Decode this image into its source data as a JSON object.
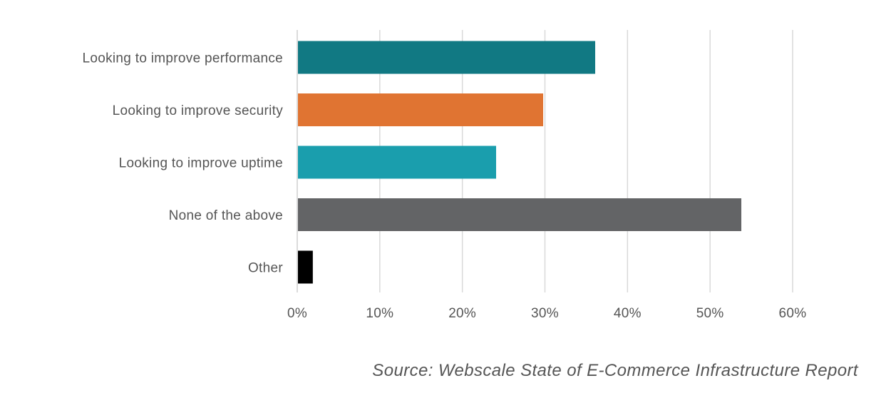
{
  "chart_data": {
    "type": "bar",
    "orientation": "horizontal",
    "categories": [
      "Looking to improve performance",
      "Looking to improve security",
      "Looking to improve uptime",
      "None of the above",
      "Other"
    ],
    "values": [
      36,
      29.7,
      24,
      53.7,
      1.8
    ],
    "colors": [
      "#117983",
      "#e07432",
      "#1a9ead",
      "#636466",
      "#000000"
    ],
    "x_ticks": [
      "0%",
      "10%",
      "20%",
      "30%",
      "40%",
      "50%",
      "60%"
    ],
    "xlim": [
      0,
      60
    ],
    "grid": true,
    "title": "",
    "xlabel": "",
    "ylabel": ""
  },
  "source": "Source: Webscale State of E-Commerce Infrastructure Report"
}
